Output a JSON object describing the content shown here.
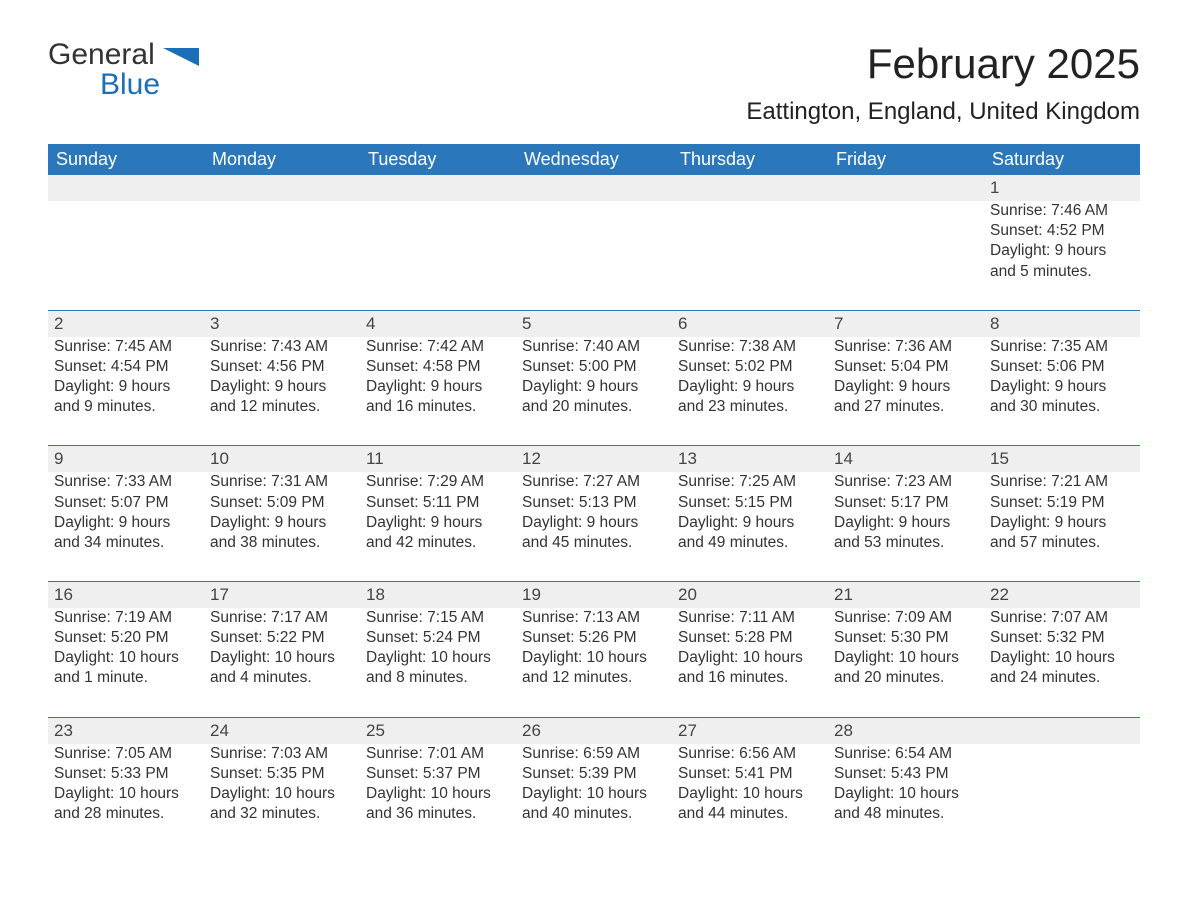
{
  "logo": {
    "word1": "General",
    "word2": "Blue",
    "flag_color": "#1b6fb8"
  },
  "title": "February 2025",
  "location": "Eattington, England, United Kingdom",
  "colors": {
    "header_bg": "#2a77bc",
    "header_text": "#ffffff",
    "daynum_bg": "#efefef",
    "border": "#2a77bc",
    "text": "#333333",
    "background": "#ffffff"
  },
  "weekdays": [
    "Sunday",
    "Monday",
    "Tuesday",
    "Wednesday",
    "Thursday",
    "Friday",
    "Saturday"
  ],
  "weeks": [
    [
      null,
      null,
      null,
      null,
      null,
      null,
      {
        "n": "1",
        "sr": "Sunrise: 7:46 AM",
        "ss": "Sunset: 4:52 PM",
        "d1": "Daylight: 9 hours",
        "d2": "and 5 minutes."
      }
    ],
    [
      {
        "n": "2",
        "sr": "Sunrise: 7:45 AM",
        "ss": "Sunset: 4:54 PM",
        "d1": "Daylight: 9 hours",
        "d2": "and 9 minutes."
      },
      {
        "n": "3",
        "sr": "Sunrise: 7:43 AM",
        "ss": "Sunset: 4:56 PM",
        "d1": "Daylight: 9 hours",
        "d2": "and 12 minutes."
      },
      {
        "n": "4",
        "sr": "Sunrise: 7:42 AM",
        "ss": "Sunset: 4:58 PM",
        "d1": "Daylight: 9 hours",
        "d2": "and 16 minutes."
      },
      {
        "n": "5",
        "sr": "Sunrise: 7:40 AM",
        "ss": "Sunset: 5:00 PM",
        "d1": "Daylight: 9 hours",
        "d2": "and 20 minutes."
      },
      {
        "n": "6",
        "sr": "Sunrise: 7:38 AM",
        "ss": "Sunset: 5:02 PM",
        "d1": "Daylight: 9 hours",
        "d2": "and 23 minutes."
      },
      {
        "n": "7",
        "sr": "Sunrise: 7:36 AM",
        "ss": "Sunset: 5:04 PM",
        "d1": "Daylight: 9 hours",
        "d2": "and 27 minutes."
      },
      {
        "n": "8",
        "sr": "Sunrise: 7:35 AM",
        "ss": "Sunset: 5:06 PM",
        "d1": "Daylight: 9 hours",
        "d2": "and 30 minutes."
      }
    ],
    [
      {
        "n": "9",
        "sr": "Sunrise: 7:33 AM",
        "ss": "Sunset: 5:07 PM",
        "d1": "Daylight: 9 hours",
        "d2": "and 34 minutes."
      },
      {
        "n": "10",
        "sr": "Sunrise: 7:31 AM",
        "ss": "Sunset: 5:09 PM",
        "d1": "Daylight: 9 hours",
        "d2": "and 38 minutes."
      },
      {
        "n": "11",
        "sr": "Sunrise: 7:29 AM",
        "ss": "Sunset: 5:11 PM",
        "d1": "Daylight: 9 hours",
        "d2": "and 42 minutes."
      },
      {
        "n": "12",
        "sr": "Sunrise: 7:27 AM",
        "ss": "Sunset: 5:13 PM",
        "d1": "Daylight: 9 hours",
        "d2": "and 45 minutes."
      },
      {
        "n": "13",
        "sr": "Sunrise: 7:25 AM",
        "ss": "Sunset: 5:15 PM",
        "d1": "Daylight: 9 hours",
        "d2": "and 49 minutes."
      },
      {
        "n": "14",
        "sr": "Sunrise: 7:23 AM",
        "ss": "Sunset: 5:17 PM",
        "d1": "Daylight: 9 hours",
        "d2": "and 53 minutes."
      },
      {
        "n": "15",
        "sr": "Sunrise: 7:21 AM",
        "ss": "Sunset: 5:19 PM",
        "d1": "Daylight: 9 hours",
        "d2": "and 57 minutes."
      }
    ],
    [
      {
        "n": "16",
        "sr": "Sunrise: 7:19 AM",
        "ss": "Sunset: 5:20 PM",
        "d1": "Daylight: 10 hours",
        "d2": "and 1 minute."
      },
      {
        "n": "17",
        "sr": "Sunrise: 7:17 AM",
        "ss": "Sunset: 5:22 PM",
        "d1": "Daylight: 10 hours",
        "d2": "and 4 minutes."
      },
      {
        "n": "18",
        "sr": "Sunrise: 7:15 AM",
        "ss": "Sunset: 5:24 PM",
        "d1": "Daylight: 10 hours",
        "d2": "and 8 minutes."
      },
      {
        "n": "19",
        "sr": "Sunrise: 7:13 AM",
        "ss": "Sunset: 5:26 PM",
        "d1": "Daylight: 10 hours",
        "d2": "and 12 minutes."
      },
      {
        "n": "20",
        "sr": "Sunrise: 7:11 AM",
        "ss": "Sunset: 5:28 PM",
        "d1": "Daylight: 10 hours",
        "d2": "and 16 minutes."
      },
      {
        "n": "21",
        "sr": "Sunrise: 7:09 AM",
        "ss": "Sunset: 5:30 PM",
        "d1": "Daylight: 10 hours",
        "d2": "and 20 minutes."
      },
      {
        "n": "22",
        "sr": "Sunrise: 7:07 AM",
        "ss": "Sunset: 5:32 PM",
        "d1": "Daylight: 10 hours",
        "d2": "and 24 minutes."
      }
    ],
    [
      {
        "n": "23",
        "sr": "Sunrise: 7:05 AM",
        "ss": "Sunset: 5:33 PM",
        "d1": "Daylight: 10 hours",
        "d2": "and 28 minutes."
      },
      {
        "n": "24",
        "sr": "Sunrise: 7:03 AM",
        "ss": "Sunset: 5:35 PM",
        "d1": "Daylight: 10 hours",
        "d2": "and 32 minutes."
      },
      {
        "n": "25",
        "sr": "Sunrise: 7:01 AM",
        "ss": "Sunset: 5:37 PM",
        "d1": "Daylight: 10 hours",
        "d2": "and 36 minutes."
      },
      {
        "n": "26",
        "sr": "Sunrise: 6:59 AM",
        "ss": "Sunset: 5:39 PM",
        "d1": "Daylight: 10 hours",
        "d2": "and 40 minutes."
      },
      {
        "n": "27",
        "sr": "Sunrise: 6:56 AM",
        "ss": "Sunset: 5:41 PM",
        "d1": "Daylight: 10 hours",
        "d2": "and 44 minutes."
      },
      {
        "n": "28",
        "sr": "Sunrise: 6:54 AM",
        "ss": "Sunset: 5:43 PM",
        "d1": "Daylight: 10 hours",
        "d2": "and 48 minutes."
      },
      null
    ]
  ]
}
